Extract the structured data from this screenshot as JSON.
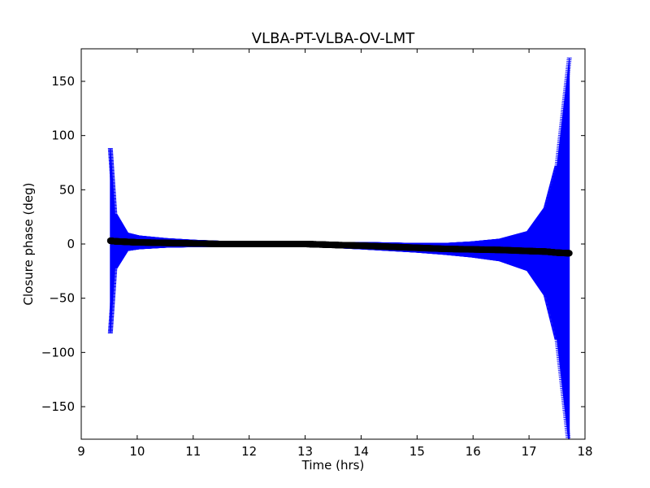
{
  "chart_data": {
    "type": "scatter",
    "title": "VLBA-PT-VLBA-OV-LMT",
    "xlabel": "Time (hrs)",
    "ylabel": "Closure phase (deg)",
    "xlim": [
      9,
      18
    ],
    "ylim": [
      -180,
      180
    ],
    "xticks": [
      9,
      10,
      11,
      12,
      13,
      14,
      15,
      16,
      17,
      18
    ],
    "xtick_labels": [
      "9",
      "10",
      "11",
      "12",
      "13",
      "14",
      "15",
      "16",
      "17",
      "18"
    ],
    "yticks": [
      150,
      100,
      50,
      0,
      -50,
      -100,
      -150
    ],
    "ytick_labels": [
      "150",
      "100",
      "50",
      "0",
      "−50",
      "−100",
      "−150"
    ],
    "grid": false,
    "legend": "none",
    "series": [
      {
        "marker_color": "#000000",
        "errorbar_color": "#0000ff",
        "x": [
          9.52,
          9.6,
          9.8,
          10.0,
          10.5,
          11.0,
          11.5,
          12.0,
          12.5,
          13.0,
          13.3,
          13.6,
          14.0,
          14.5,
          15.0,
          15.5,
          16.0,
          16.5,
          17.0,
          17.3,
          17.5,
          17.72
        ],
        "y": [
          3,
          2.5,
          2,
          1.5,
          1,
          0.5,
          0,
          0,
          0,
          0,
          -0.5,
          -1,
          -1.5,
          -2.5,
          -3.5,
          -4.5,
          -5,
          -5.5,
          -6.5,
          -7,
          -8,
          -8.5
        ],
        "yerr": [
          85,
          25,
          8,
          6,
          4,
          3,
          2.5,
          2,
          2,
          2,
          2,
          2.5,
          3,
          3.5,
          4,
          5,
          7,
          10,
          18,
          40,
          80,
          180
        ]
      }
    ]
  }
}
